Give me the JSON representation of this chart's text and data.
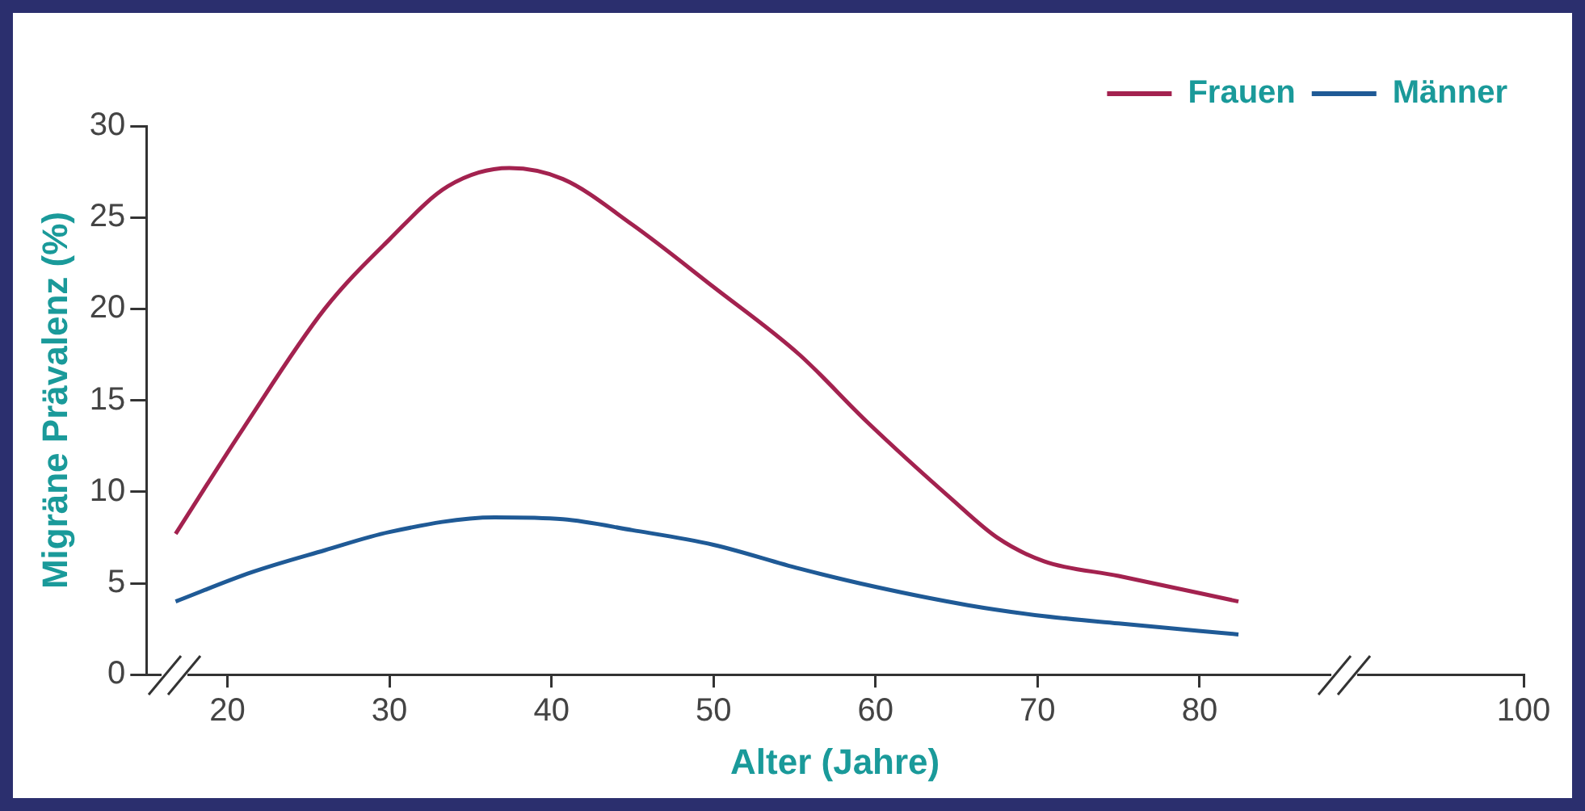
{
  "chart_data": {
    "type": "line",
    "xlabel": "Alter (Jahre)",
    "ylabel": "Migräne Prävalenz (%)",
    "xlim": [
      15,
      100
    ],
    "xticks": [
      20,
      30,
      40,
      50,
      60,
      70,
      80,
      100
    ],
    "ylim": [
      0,
      30
    ],
    "yticks": [
      0,
      5,
      10,
      15,
      20,
      25,
      30
    ],
    "grid": false,
    "legend": "top right",
    "marker": "none",
    "line_style": "solid",
    "series": [
      {
        "name": "Frauen",
        "color": "#a3224f",
        "x": [
          16.8,
          21,
          26,
          30,
          33.6,
          37.4,
          40.7,
          45,
          50,
          55.3,
          59.5,
          64.7,
          67.5,
          70.4,
          75,
          82.4
        ],
        "values": [
          7.7,
          13.5,
          20,
          23.8,
          26.7,
          27.7,
          27.1,
          24.6,
          21.2,
          17.5,
          13.8,
          9.6,
          7.5,
          6.2,
          5.4,
          4
        ]
      },
      {
        "name": "Männer",
        "color": "#1f5a96",
        "x": [
          16.8,
          21.5,
          26,
          30,
          36.5,
          40.7,
          45,
          50,
          55.3,
          60,
          65.7,
          70.4,
          75,
          82.4
        ],
        "values": [
          4,
          5.6,
          6.8,
          7.8,
          8.6,
          8.5,
          7.9,
          7.1,
          5.8,
          4.8,
          3.8,
          3.2,
          2.8,
          2.2
        ]
      }
    ]
  }
}
